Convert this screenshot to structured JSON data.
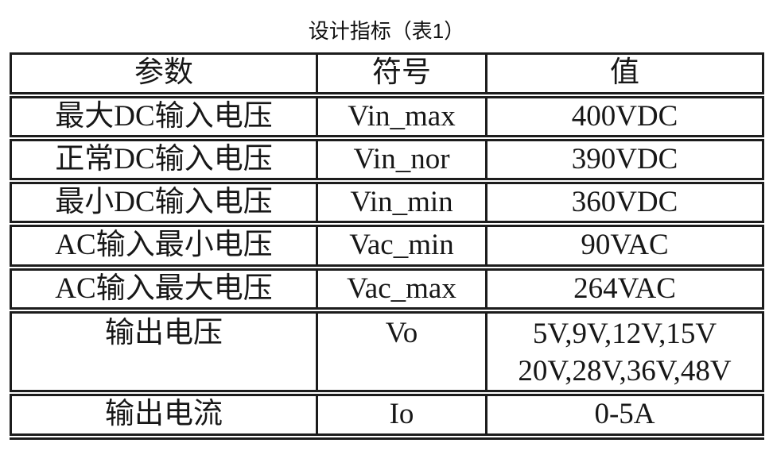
{
  "page": {
    "background": "#ffffff",
    "text_color": "#171717",
    "border_color": "#1c1c1c"
  },
  "title": "设计指标（表1）",
  "table": {
    "headers": [
      "参数",
      "符号",
      "值"
    ],
    "rows": [
      {
        "param": "最大DC输入电压",
        "symbol": "Vin_max",
        "value": "400VDC"
      },
      {
        "param": "正常DC输入电压",
        "symbol": "Vin_nor",
        "value": "390VDC"
      },
      {
        "param": "最小DC输入电压",
        "symbol": "Vin_min",
        "value": "360VDC"
      },
      {
        "param": "AC输入最小电压",
        "symbol": "Vac_min",
        "value": "90VAC"
      },
      {
        "param": "AC输入最大电压",
        "symbol": "Vac_max",
        "value": "264VAC"
      },
      {
        "param": "输出电压",
        "symbol": "Vo",
        "value": "5V,9V,12V,15V\n20V,28V,36V,48V"
      },
      {
        "param": "输出电流",
        "symbol": "Io",
        "value": "0-5A"
      }
    ]
  }
}
